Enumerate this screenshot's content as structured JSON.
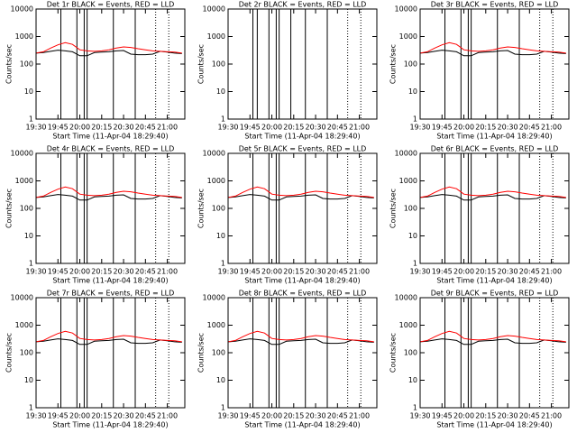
{
  "chart_data": [
    {
      "type": "line",
      "title": "Det 1r BLACK = Events, RED = LLD",
      "xlabel": "Start Time (11-Apr-04 18:29:40)",
      "ylabel": "Counts/sec",
      "yscale": "log",
      "ylim": [
        1,
        10000
      ],
      "yticks": [
        1,
        10,
        100,
        1000,
        10000
      ],
      "xlim": [
        1170,
        1272
      ],
      "xticks": [
        {
          "value": 1170,
          "label": "19:30"
        },
        {
          "value": 1185,
          "label": "19:45"
        },
        {
          "value": 1200,
          "label": "20:00"
        },
        {
          "value": 1215,
          "label": "20:15"
        },
        {
          "value": 1230,
          "label": "20:30"
        },
        {
          "value": 1245,
          "label": "20:45"
        },
        {
          "value": 1260,
          "label": "21:00"
        }
      ],
      "x": [
        1170,
        1175,
        1180,
        1185,
        1190,
        1195,
        1200,
        1205,
        1210,
        1215,
        1220,
        1225,
        1230,
        1235,
        1240,
        1245,
        1250,
        1255,
        1260,
        1265,
        1270
      ],
      "series": [
        {
          "color": "#000000",
          "values": [
            250,
            260,
            290,
            320,
            300,
            280,
            200,
            200,
            260,
            270,
            280,
            300,
            310,
            230,
            220,
            220,
            230,
            290,
            270,
            250,
            240
          ]
        },
        {
          "color": "#ff0000",
          "values": [
            250,
            280,
            380,
            500,
            600,
            520,
            330,
            300,
            290,
            300,
            330,
            380,
            420,
            400,
            360,
            330,
            300,
            290,
            280,
            270,
            250
          ]
        }
      ],
      "vlines": [
        1187,
        1198,
        1203,
        1205,
        1223,
        1238
      ],
      "dotted_vlines": [
        1252,
        1261
      ]
    },
    {
      "type": "line",
      "title": "Det 2r BLACK = Events, RED = LLD",
      "xlabel": "Start Time (11-Apr-04 18:29:40)",
      "ylabel": "Counts/sec",
      "yscale": "log",
      "ylim": [
        1,
        10000
      ],
      "yticks": [
        1,
        10,
        100,
        1000,
        10000
      ],
      "xlim": [
        1170,
        1272
      ],
      "xticks": [
        {
          "value": 1170,
          "label": "19:30"
        },
        {
          "value": 1185,
          "label": "19:45"
        },
        {
          "value": 1200,
          "label": "20:00"
        },
        {
          "value": 1215,
          "label": "20:15"
        },
        {
          "value": 1230,
          "label": "20:30"
        },
        {
          "value": 1245,
          "label": "20:45"
        },
        {
          "value": 1260,
          "label": "21:00"
        }
      ],
      "x": [
        1170,
        1175,
        1180,
        1185,
        1190,
        1195,
        1200,
        1205,
        1210,
        1215,
        1220,
        1225,
        1230,
        1235,
        1240,
        1245,
        1250,
        1255,
        1260,
        1265,
        1270
      ],
      "series": [],
      "vlines": [
        1187,
        1190,
        1198,
        1203,
        1205,
        1213,
        1223,
        1238
      ],
      "dotted_vlines": [
        1252,
        1261
      ]
    },
    {
      "type": "line",
      "title": "Det 3r BLACK = Events, RED = LLD",
      "xlabel": "Start Time (11-Apr-04 18:29:40)",
      "ylabel": "Counts/sec",
      "yscale": "log",
      "ylim": [
        1,
        10000
      ],
      "yticks": [
        1,
        10,
        100,
        1000,
        10000
      ],
      "xlim": [
        1170,
        1272
      ],
      "xticks": [
        {
          "value": 1170,
          "label": "19:30"
        },
        {
          "value": 1185,
          "label": "19:45"
        },
        {
          "value": 1200,
          "label": "20:00"
        },
        {
          "value": 1215,
          "label": "20:15"
        },
        {
          "value": 1230,
          "label": "20:30"
        },
        {
          "value": 1245,
          "label": "20:45"
        },
        {
          "value": 1260,
          "label": "21:00"
        }
      ],
      "x": [
        1170,
        1175,
        1180,
        1185,
        1190,
        1195,
        1200,
        1205,
        1210,
        1215,
        1220,
        1225,
        1230,
        1235,
        1240,
        1245,
        1250,
        1255,
        1260,
        1265,
        1270
      ],
      "series": [
        {
          "color": "#000000",
          "values": [
            250,
            260,
            290,
            320,
            300,
            280,
            200,
            200,
            260,
            270,
            280,
            300,
            310,
            230,
            220,
            220,
            230,
            290,
            270,
            250,
            240
          ]
        },
        {
          "color": "#ff0000",
          "values": [
            250,
            280,
            380,
            500,
            600,
            520,
            330,
            300,
            290,
            300,
            330,
            380,
            420,
            400,
            360,
            330,
            300,
            290,
            280,
            270,
            250
          ]
        }
      ],
      "vlines": [
        1187,
        1198,
        1203,
        1205,
        1223,
        1238
      ],
      "dotted_vlines": [
        1252,
        1261
      ]
    },
    {
      "type": "line",
      "title": "Det 4r BLACK = Events, RED = LLD",
      "xlabel": "Start Time (11-Apr-04 18:29:40)",
      "ylabel": "Counts/sec",
      "yscale": "log",
      "ylim": [
        1,
        10000
      ],
      "yticks": [
        1,
        10,
        100,
        1000,
        10000
      ],
      "xlim": [
        1170,
        1272
      ],
      "xticks": [
        {
          "value": 1170,
          "label": "19:30"
        },
        {
          "value": 1185,
          "label": "19:45"
        },
        {
          "value": 1200,
          "label": "20:00"
        },
        {
          "value": 1215,
          "label": "20:15"
        },
        {
          "value": 1230,
          "label": "20:30"
        },
        {
          "value": 1245,
          "label": "20:45"
        },
        {
          "value": 1260,
          "label": "21:00"
        }
      ],
      "x": [
        1170,
        1175,
        1180,
        1185,
        1190,
        1195,
        1200,
        1205,
        1210,
        1215,
        1220,
        1225,
        1230,
        1235,
        1240,
        1245,
        1250,
        1255,
        1260,
        1265,
        1270
      ],
      "series": [
        {
          "color": "#000000",
          "values": [
            250,
            260,
            290,
            320,
            300,
            280,
            200,
            200,
            260,
            270,
            280,
            300,
            310,
            230,
            220,
            220,
            230,
            290,
            270,
            250,
            240
          ]
        },
        {
          "color": "#ff0000",
          "values": [
            250,
            280,
            380,
            500,
            600,
            520,
            330,
            300,
            290,
            300,
            330,
            380,
            420,
            400,
            360,
            330,
            300,
            290,
            280,
            270,
            250
          ]
        }
      ],
      "vlines": [
        1187,
        1198,
        1203,
        1205,
        1223,
        1238
      ],
      "dotted_vlines": [
        1252,
        1261
      ]
    },
    {
      "type": "line",
      "title": "Det 5r BLACK = Events, RED = LLD",
      "xlabel": "Start Time (11-Apr-04 18:29:40)",
      "ylabel": "Counts/sec",
      "yscale": "log",
      "ylim": [
        1,
        10000
      ],
      "yticks": [
        1,
        10,
        100,
        1000,
        10000
      ],
      "xlim": [
        1170,
        1272
      ],
      "xticks": [
        {
          "value": 1170,
          "label": "19:30"
        },
        {
          "value": 1185,
          "label": "19:45"
        },
        {
          "value": 1200,
          "label": "20:00"
        },
        {
          "value": 1215,
          "label": "20:15"
        },
        {
          "value": 1230,
          "label": "20:30"
        },
        {
          "value": 1245,
          "label": "20:45"
        },
        {
          "value": 1260,
          "label": "21:00"
        }
      ],
      "x": [
        1170,
        1175,
        1180,
        1185,
        1190,
        1195,
        1200,
        1205,
        1210,
        1215,
        1220,
        1225,
        1230,
        1235,
        1240,
        1245,
        1250,
        1255,
        1260,
        1265,
        1270
      ],
      "series": [
        {
          "color": "#000000",
          "values": [
            250,
            260,
            290,
            320,
            300,
            280,
            200,
            200,
            260,
            270,
            280,
            300,
            310,
            230,
            220,
            220,
            230,
            290,
            270,
            250,
            240
          ]
        },
        {
          "color": "#ff0000",
          "values": [
            250,
            280,
            380,
            500,
            600,
            520,
            330,
            300,
            290,
            300,
            330,
            380,
            420,
            400,
            360,
            330,
            300,
            290,
            280,
            270,
            250
          ]
        }
      ],
      "vlines": [
        1187,
        1198,
        1203,
        1205,
        1223,
        1238
      ],
      "dotted_vlines": [
        1252,
        1261
      ]
    },
    {
      "type": "line",
      "title": "Det 6r BLACK = Events, RED = LLD",
      "xlabel": "Start Time (11-Apr-04 18:29:40)",
      "ylabel": "Counts/sec",
      "yscale": "log",
      "ylim": [
        1,
        10000
      ],
      "yticks": [
        1,
        10,
        100,
        1000,
        10000
      ],
      "xlim": [
        1170,
        1272
      ],
      "xticks": [
        {
          "value": 1170,
          "label": "19:30"
        },
        {
          "value": 1185,
          "label": "19:45"
        },
        {
          "value": 1200,
          "label": "20:00"
        },
        {
          "value": 1215,
          "label": "20:15"
        },
        {
          "value": 1230,
          "label": "20:30"
        },
        {
          "value": 1245,
          "label": "20:45"
        },
        {
          "value": 1260,
          "label": "21:00"
        }
      ],
      "x": [
        1170,
        1175,
        1180,
        1185,
        1190,
        1195,
        1200,
        1205,
        1210,
        1215,
        1220,
        1225,
        1230,
        1235,
        1240,
        1245,
        1250,
        1255,
        1260,
        1265,
        1270
      ],
      "series": [
        {
          "color": "#000000",
          "values": [
            250,
            260,
            290,
            320,
            300,
            280,
            200,
            200,
            260,
            270,
            280,
            300,
            310,
            230,
            220,
            220,
            230,
            290,
            270,
            250,
            240
          ]
        },
        {
          "color": "#ff0000",
          "values": [
            250,
            280,
            380,
            500,
            600,
            520,
            330,
            300,
            290,
            300,
            330,
            380,
            420,
            400,
            360,
            330,
            300,
            290,
            280,
            270,
            250
          ]
        }
      ],
      "vlines": [
        1187,
        1198,
        1203,
        1205,
        1223,
        1238
      ],
      "dotted_vlines": [
        1252,
        1261
      ]
    },
    {
      "type": "line",
      "title": "Det 7r BLACK = Events, RED = LLD",
      "xlabel": "Start Time (11-Apr-04 18:29:40)",
      "ylabel": "Counts/sec",
      "yscale": "log",
      "ylim": [
        1,
        10000
      ],
      "yticks": [
        1,
        10,
        100,
        1000,
        10000
      ],
      "xlim": [
        1170,
        1272
      ],
      "xticks": [
        {
          "value": 1170,
          "label": "19:30"
        },
        {
          "value": 1185,
          "label": "19:45"
        },
        {
          "value": 1200,
          "label": "20:00"
        },
        {
          "value": 1215,
          "label": "20:15"
        },
        {
          "value": 1230,
          "label": "20:30"
        },
        {
          "value": 1245,
          "label": "20:45"
        },
        {
          "value": 1260,
          "label": "21:00"
        }
      ],
      "x": [
        1170,
        1175,
        1180,
        1185,
        1190,
        1195,
        1200,
        1205,
        1210,
        1215,
        1220,
        1225,
        1230,
        1235,
        1240,
        1245,
        1250,
        1255,
        1260,
        1265,
        1270
      ],
      "series": [
        {
          "color": "#000000",
          "values": [
            250,
            260,
            290,
            320,
            300,
            280,
            200,
            200,
            260,
            270,
            280,
            300,
            310,
            230,
            220,
            220,
            230,
            290,
            270,
            250,
            240
          ]
        },
        {
          "color": "#ff0000",
          "values": [
            250,
            280,
            380,
            500,
            600,
            520,
            330,
            300,
            290,
            300,
            330,
            380,
            420,
            400,
            360,
            330,
            300,
            290,
            280,
            270,
            250
          ]
        }
      ],
      "vlines": [
        1187,
        1198,
        1203,
        1205,
        1223,
        1238
      ],
      "dotted_vlines": [
        1252,
        1261
      ]
    },
    {
      "type": "line",
      "title": "Det 8r BLACK = Events, RED = LLD",
      "xlabel": "Start Time (11-Apr-04 18:29:40)",
      "ylabel": "Counts/sec",
      "yscale": "log",
      "ylim": [
        1,
        10000
      ],
      "yticks": [
        1,
        10,
        100,
        1000,
        10000
      ],
      "xlim": [
        1170,
        1272
      ],
      "xticks": [
        {
          "value": 1170,
          "label": "19:30"
        },
        {
          "value": 1185,
          "label": "19:45"
        },
        {
          "value": 1200,
          "label": "20:00"
        },
        {
          "value": 1215,
          "label": "20:15"
        },
        {
          "value": 1230,
          "label": "20:30"
        },
        {
          "value": 1245,
          "label": "20:45"
        },
        {
          "value": 1260,
          "label": "21:00"
        }
      ],
      "x": [
        1170,
        1175,
        1180,
        1185,
        1190,
        1195,
        1200,
        1205,
        1210,
        1215,
        1220,
        1225,
        1230,
        1235,
        1240,
        1245,
        1250,
        1255,
        1260,
        1265,
        1270
      ],
      "series": [
        {
          "color": "#000000",
          "values": [
            250,
            260,
            290,
            320,
            300,
            280,
            200,
            200,
            260,
            270,
            280,
            300,
            310,
            230,
            220,
            220,
            230,
            290,
            270,
            250,
            240
          ]
        },
        {
          "color": "#ff0000",
          "values": [
            250,
            280,
            380,
            500,
            600,
            520,
            330,
            300,
            290,
            300,
            330,
            380,
            420,
            400,
            360,
            330,
            300,
            290,
            280,
            270,
            250
          ]
        }
      ],
      "vlines": [
        1187,
        1198,
        1203,
        1205,
        1223,
        1238
      ],
      "dotted_vlines": [
        1252,
        1261
      ]
    },
    {
      "type": "line",
      "title": "Det 9r BLACK = Events, RED = LLD",
      "xlabel": "Start Time (11-Apr-04 18:29:40)",
      "ylabel": "Counts/sec",
      "yscale": "log",
      "ylim": [
        1,
        10000
      ],
      "yticks": [
        1,
        10,
        100,
        1000,
        10000
      ],
      "xlim": [
        1170,
        1272
      ],
      "xticks": [
        {
          "value": 1170,
          "label": "19:30"
        },
        {
          "value": 1185,
          "label": "19:45"
        },
        {
          "value": 1200,
          "label": "20:00"
        },
        {
          "value": 1215,
          "label": "20:15"
        },
        {
          "value": 1230,
          "label": "20:30"
        },
        {
          "value": 1245,
          "label": "20:45"
        },
        {
          "value": 1260,
          "label": "21:00"
        }
      ],
      "x": [
        1170,
        1175,
        1180,
        1185,
        1190,
        1195,
        1200,
        1205,
        1210,
        1215,
        1220,
        1225,
        1230,
        1235,
        1240,
        1245,
        1250,
        1255,
        1260,
        1265,
        1270
      ],
      "series": [
        {
          "color": "#000000",
          "values": [
            250,
            260,
            290,
            320,
            300,
            280,
            200,
            200,
            260,
            270,
            280,
            300,
            310,
            230,
            220,
            220,
            230,
            290,
            270,
            250,
            240
          ]
        },
        {
          "color": "#ff0000",
          "values": [
            250,
            280,
            380,
            500,
            600,
            520,
            330,
            300,
            290,
            300,
            330,
            380,
            420,
            400,
            360,
            330,
            300,
            290,
            280,
            270,
            250
          ]
        }
      ],
      "vlines": [
        1187,
        1198,
        1203,
        1205,
        1223,
        1238
      ],
      "dotted_vlines": [
        1252,
        1261
      ]
    }
  ]
}
